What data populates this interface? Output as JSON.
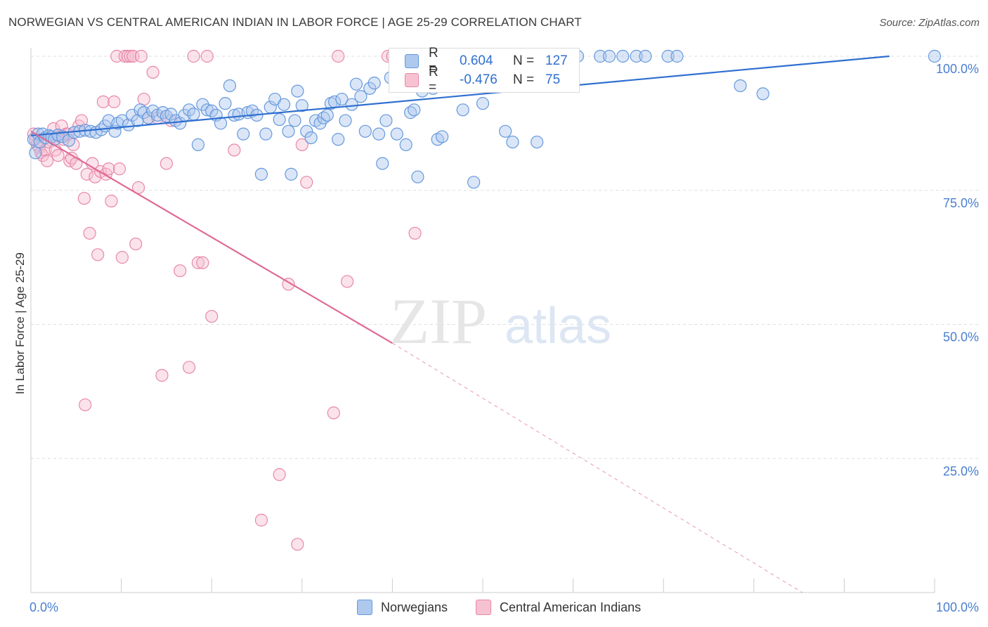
{
  "title": "NORWEGIAN VS CENTRAL AMERICAN INDIAN IN LABOR FORCE | AGE 25-29 CORRELATION CHART",
  "source": "Source: ZipAtlas.com",
  "watermark": {
    "zip": "ZIP",
    "atlas": "atlas"
  },
  "colors": {
    "blue": "#6699dd",
    "blue_fill": "#aec8ee",
    "blue_line": "#2f6fd0",
    "blue_text": "#2f6fd0",
    "pink": "#e888a8",
    "pink_fill": "#f6c2d2",
    "pink_line": "#e06a96",
    "grid": "#dddddd",
    "axis_text": "#4a7fd0"
  },
  "legend": {
    "r_label": "R =",
    "n_label": "N =",
    "series": [
      {
        "r": "0.604",
        "n": "127"
      },
      {
        "r": "-0.476",
        "n": "75"
      }
    ]
  },
  "chart_data": {
    "type": "scatter",
    "title": "NORWEGIAN VS CENTRAL AMERICAN INDIAN IN LABOR FORCE | AGE 25-29 CORRELATION CHART",
    "xlabel": "",
    "ylabel": "In Labor Force | Age 25-29",
    "xlim": [
      0,
      100
    ],
    "ylim": [
      0,
      100
    ],
    "x_tick_labels": [
      "0.0%",
      "100.0%"
    ],
    "y_tick_labels": [
      "25.0%",
      "50.0%",
      "75.0%",
      "100.0%"
    ],
    "grid": true,
    "legend_position": "bottom",
    "series": [
      {
        "name": "Norwegians",
        "trend": {
          "x0": 0,
          "y0": 85.2,
          "x1": 95,
          "y1": 100.0
        },
        "points": [
          [
            0.3,
            84.5
          ],
          [
            0.5,
            82.0
          ],
          [
            0.8,
            85.5
          ],
          [
            1.0,
            84.0
          ],
          [
            1.3,
            85.5
          ],
          [
            1.6,
            84.8
          ],
          [
            2.0,
            85.2
          ],
          [
            2.3,
            85.0
          ],
          [
            2.6,
            84.5
          ],
          [
            3.0,
            85.3
          ],
          [
            3.5,
            85.0
          ],
          [
            4.2,
            84.3
          ],
          [
            4.8,
            85.8
          ],
          [
            5.4,
            86.0
          ],
          [
            6.0,
            86.2
          ],
          [
            6.6,
            86.0
          ],
          [
            7.2,
            85.8
          ],
          [
            7.8,
            86.3
          ],
          [
            8.2,
            87.0
          ],
          [
            8.6,
            88.0
          ],
          [
            9.3,
            86.0
          ],
          [
            9.6,
            87.5
          ],
          [
            10.1,
            88.0
          ],
          [
            10.8,
            87.2
          ],
          [
            11.2,
            89.0
          ],
          [
            11.8,
            88.0
          ],
          [
            12.1,
            90.0
          ],
          [
            12.5,
            89.5
          ],
          [
            13.0,
            88.5
          ],
          [
            13.5,
            89.8
          ],
          [
            14.0,
            89.0
          ],
          [
            14.6,
            89.5
          ],
          [
            15.0,
            88.8
          ],
          [
            15.5,
            89.2
          ],
          [
            16.0,
            88.0
          ],
          [
            16.5,
            87.5
          ],
          [
            17.0,
            89.0
          ],
          [
            17.5,
            90.0
          ],
          [
            18.0,
            89.2
          ],
          [
            18.5,
            83.5
          ],
          [
            19.0,
            91.0
          ],
          [
            19.5,
            90.0
          ],
          [
            20.0,
            89.8
          ],
          [
            20.5,
            89.0
          ],
          [
            21.0,
            87.5
          ],
          [
            21.5,
            91.2
          ],
          [
            22.0,
            94.5
          ],
          [
            22.5,
            89.0
          ],
          [
            23.0,
            89.2
          ],
          [
            23.5,
            85.5
          ],
          [
            24.0,
            89.5
          ],
          [
            24.5,
            89.8
          ],
          [
            25.0,
            89.0
          ],
          [
            25.5,
            78.0
          ],
          [
            26.0,
            85.5
          ],
          [
            26.5,
            90.5
          ],
          [
            27.0,
            92.0
          ],
          [
            27.5,
            88.2
          ],
          [
            28.0,
            91.0
          ],
          [
            28.5,
            86.0
          ],
          [
            28.8,
            78.0
          ],
          [
            29.2,
            88.0
          ],
          [
            29.5,
            93.5
          ],
          [
            30.0,
            90.8
          ],
          [
            30.5,
            86.0
          ],
          [
            31.0,
            84.8
          ],
          [
            31.5,
            88.0
          ],
          [
            32.0,
            87.5
          ],
          [
            32.4,
            88.5
          ],
          [
            32.8,
            89.0
          ],
          [
            33.2,
            91.2
          ],
          [
            33.6,
            91.5
          ],
          [
            34.0,
            84.5
          ],
          [
            34.4,
            92.0
          ],
          [
            34.8,
            88.0
          ],
          [
            35.5,
            91.0
          ],
          [
            36.0,
            94.8
          ],
          [
            36.5,
            92.5
          ],
          [
            37.0,
            86.0
          ],
          [
            37.5,
            94.0
          ],
          [
            38.0,
            95.0
          ],
          [
            38.5,
            85.5
          ],
          [
            38.9,
            80.0
          ],
          [
            39.3,
            88.0
          ],
          [
            39.8,
            96.0
          ],
          [
            40.5,
            85.5
          ],
          [
            41.0,
            96.0
          ],
          [
            41.5,
            83.5
          ],
          [
            42.0,
            89.5
          ],
          [
            42.4,
            90.0
          ],
          [
            42.8,
            77.5
          ],
          [
            43.3,
            93.5
          ],
          [
            43.8,
            97.0
          ],
          [
            44.5,
            94.0
          ],
          [
            45.0,
            84.5
          ],
          [
            45.5,
            85.0
          ],
          [
            45.8,
            99.5
          ],
          [
            46.3,
            95.0
          ],
          [
            46.8,
            94.5
          ],
          [
            47.3,
            100.0
          ],
          [
            47.8,
            90.0
          ],
          [
            48.3,
            99.0
          ],
          [
            49.0,
            76.5
          ],
          [
            49.5,
            97.5
          ],
          [
            50.0,
            91.2
          ],
          [
            50.5,
            100.0
          ],
          [
            51.0,
            95.0
          ],
          [
            51.5,
            100.0
          ],
          [
            52.5,
            86.0
          ],
          [
            53.0,
            100.0
          ],
          [
            53.3,
            84.0
          ],
          [
            54.3,
            99.0
          ],
          [
            55.0,
            100.0
          ],
          [
            56.0,
            84.0
          ],
          [
            58.8,
            100.0
          ],
          [
            60.5,
            100.0
          ],
          [
            63.0,
            100.0
          ],
          [
            64.0,
            100.0
          ],
          [
            65.5,
            100.0
          ],
          [
            67.0,
            100.0
          ],
          [
            68.0,
            100.0
          ],
          [
            70.5,
            100.0
          ],
          [
            71.5,
            100.0
          ],
          [
            78.5,
            94.5
          ],
          [
            81.0,
            93.0
          ],
          [
            100.0,
            100.0
          ]
        ]
      },
      {
        "name": "Central American Indians",
        "trend": {
          "x0": 0,
          "y0": 86.0,
          "x1": 40,
          "y1": 46.5,
          "x_ext": 100,
          "y_ext": -15.0
        },
        "points": [
          [
            0.3,
            85.5
          ],
          [
            0.5,
            84.5
          ],
          [
            0.7,
            83.5
          ],
          [
            0.9,
            83.0
          ],
          [
            1.1,
            82.0
          ],
          [
            1.3,
            81.5
          ],
          [
            1.6,
            82.5
          ],
          [
            1.8,
            80.5
          ],
          [
            2.0,
            84.0
          ],
          [
            2.2,
            85.0
          ],
          [
            2.5,
            86.5
          ],
          [
            2.7,
            82.5
          ],
          [
            3.0,
            81.5
          ],
          [
            3.2,
            85.0
          ],
          [
            3.4,
            87.0
          ],
          [
            3.6,
            84.5
          ],
          [
            3.9,
            85.5
          ],
          [
            4.1,
            85.5
          ],
          [
            4.3,
            80.5
          ],
          [
            4.5,
            81.0
          ],
          [
            4.7,
            83.5
          ],
          [
            5.0,
            80.0
          ],
          [
            5.3,
            87.0
          ],
          [
            5.6,
            88.0
          ],
          [
            5.9,
            73.5
          ],
          [
            6.2,
            78.0
          ],
          [
            6.5,
            67.0
          ],
          [
            6.8,
            80.0
          ],
          [
            7.1,
            77.5
          ],
          [
            7.4,
            63.0
          ],
          [
            7.7,
            78.5
          ],
          [
            8.0,
            91.5
          ],
          [
            8.3,
            78.0
          ],
          [
            8.6,
            79.0
          ],
          [
            8.9,
            73.0
          ],
          [
            9.2,
            91.5
          ],
          [
            9.5,
            100.0
          ],
          [
            9.8,
            79.0
          ],
          [
            10.1,
            62.5
          ],
          [
            10.4,
            100.0
          ],
          [
            10.7,
            100.0
          ],
          [
            11.0,
            100.0
          ],
          [
            11.3,
            100.0
          ],
          [
            11.6,
            65.0
          ],
          [
            11.9,
            75.5
          ],
          [
            12.2,
            100.0
          ],
          [
            12.5,
            92.0
          ],
          [
            13.0,
            88.5
          ],
          [
            13.5,
            97.0
          ],
          [
            14.0,
            88.5
          ],
          [
            14.5,
            40.5
          ],
          [
            15.0,
            80.0
          ],
          [
            15.5,
            88.0
          ],
          [
            16.5,
            60.0
          ],
          [
            17.5,
            42.0
          ],
          [
            18.0,
            100.0
          ],
          [
            18.5,
            61.5
          ],
          [
            19.0,
            61.5
          ],
          [
            19.5,
            100.0
          ],
          [
            20.0,
            51.5
          ],
          [
            22.5,
            82.5
          ],
          [
            25.5,
            13.5
          ],
          [
            27.5,
            22.0
          ],
          [
            28.5,
            57.5
          ],
          [
            29.5,
            9.0
          ],
          [
            30.0,
            83.5
          ],
          [
            30.5,
            76.5
          ],
          [
            33.5,
            33.5
          ],
          [
            34.0,
            100.0
          ],
          [
            35.0,
            58.0
          ],
          [
            39.5,
            100.0
          ],
          [
            40.0,
            100.0
          ],
          [
            40.5,
            100.0
          ],
          [
            42.5,
            67.0
          ],
          [
            6.0,
            35.0
          ]
        ]
      }
    ]
  }
}
